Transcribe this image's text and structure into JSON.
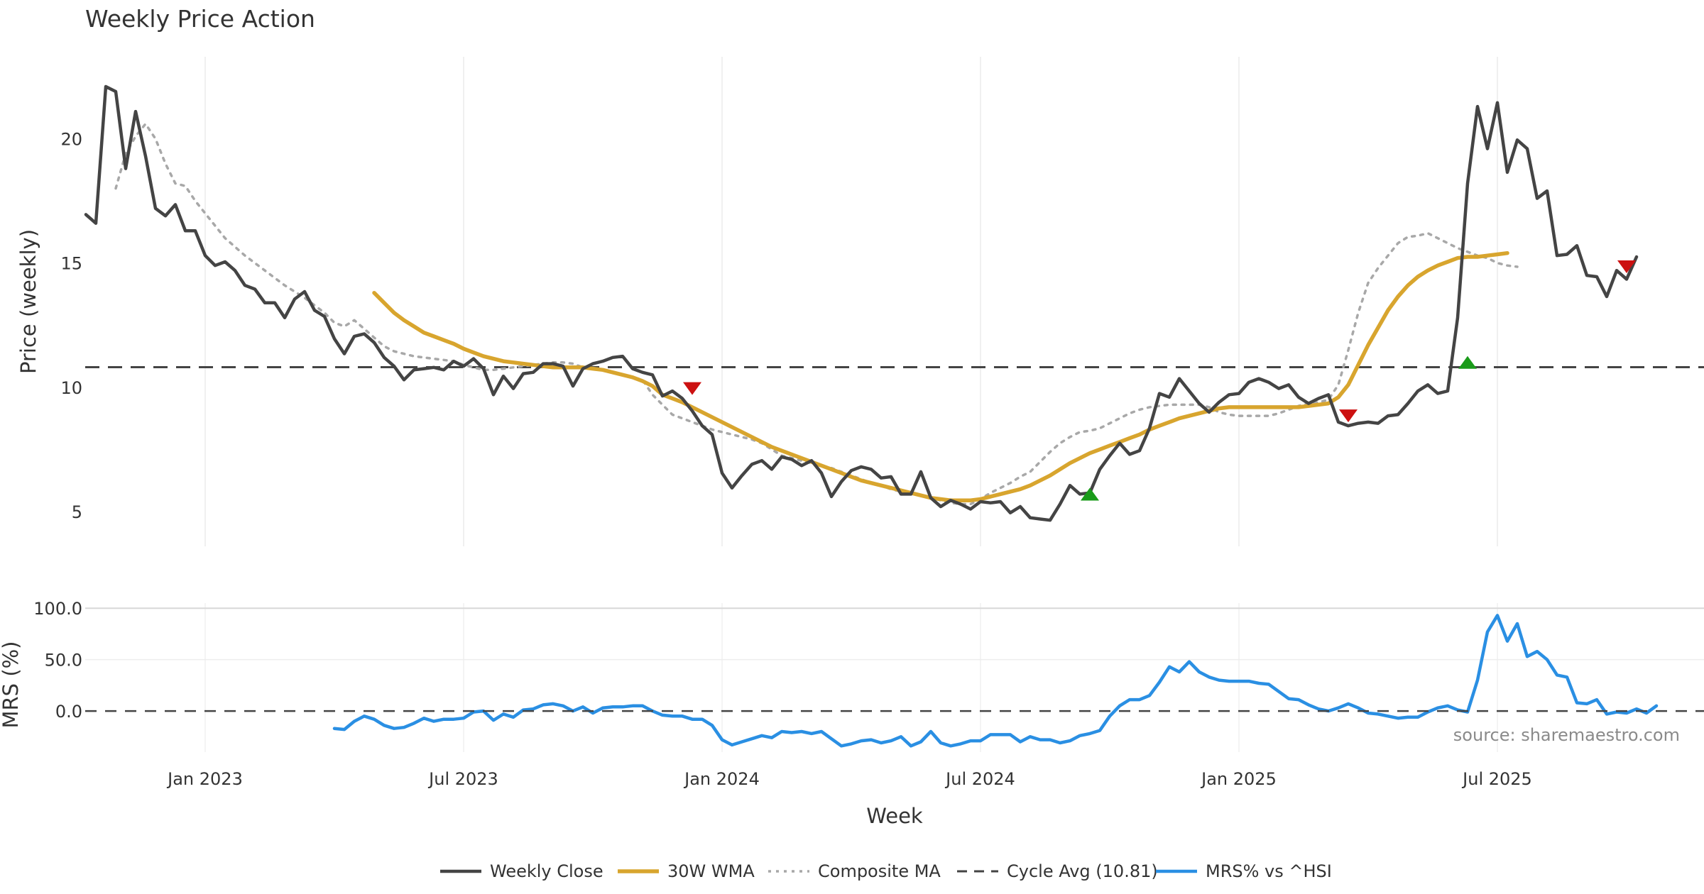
{
  "chart_data": [
    {
      "type": "line",
      "title": "Weekly Price Action",
      "xlabel": "Week",
      "ylabel": "Price (weekly)",
      "ylim": [
        3.6,
        23.3
      ],
      "yticks": [
        5,
        10,
        15,
        20
      ],
      "xticks": [
        {
          "label": "Jan 2023",
          "week": 12
        },
        {
          "label": "Jul 2023",
          "week": 38
        },
        {
          "label": "Jan 2024",
          "week": 64
        },
        {
          "label": "Jul 2024",
          "week": 90
        },
        {
          "label": "Jan 2025",
          "week": 116
        },
        {
          "label": "Jul 2025",
          "week": 142
        }
      ],
      "series": [
        {
          "name": "Weekly Close",
          "color": "#444444",
          "start_week": 0,
          "values": [
            16.95,
            16.6,
            22.1,
            21.9,
            18.8,
            21.1,
            19.3,
            17.2,
            16.9,
            17.35,
            16.3,
            16.3,
            15.3,
            14.9,
            15.05,
            14.7,
            14.1,
            13.95,
            13.4,
            13.4,
            12.8,
            13.55,
            13.85,
            13.1,
            12.85,
            11.95,
            11.35,
            12.05,
            12.15,
            11.8,
            11.2,
            10.85,
            10.3,
            10.7,
            10.75,
            10.8,
            10.7,
            11.05,
            10.85,
            11.15,
            10.75,
            9.7,
            10.45,
            9.95,
            10.55,
            10.6,
            10.95,
            10.95,
            10.85,
            10.05,
            10.75,
            10.95,
            11.05,
            11.2,
            11.25,
            10.75,
            10.6,
            10.5,
            9.65,
            9.85,
            9.55,
            9.05,
            8.45,
            8.1,
            6.55,
            5.95,
            6.45,
            6.9,
            7.05,
            6.7,
            7.2,
            7.1,
            6.85,
            7.05,
            6.55,
            5.6,
            6.2,
            6.65,
            6.8,
            6.7,
            6.35,
            6.4,
            5.7,
            5.7,
            6.6,
            5.55,
            5.2,
            5.45,
            5.3,
            5.1,
            5.4,
            5.35,
            5.4,
            4.95,
            5.2,
            4.75,
            4.7,
            4.65,
            5.3,
            6.05,
            5.7,
            5.75,
            6.7,
            7.25,
            7.75,
            7.3,
            7.45,
            8.35,
            9.75,
            9.6,
            10.35,
            9.85,
            9.35,
            9.0,
            9.4,
            9.7,
            9.75,
            10.2,
            10.35,
            10.2,
            9.95,
            10.1,
            9.6,
            9.35,
            9.55,
            9.7,
            8.6,
            8.45,
            8.55,
            8.6,
            8.55,
            8.85,
            8.9,
            9.35,
            9.85,
            10.1,
            9.75,
            9.85,
            12.8,
            18.2,
            21.3,
            19.6,
            21.45,
            18.65,
            19.95,
            19.6,
            17.6,
            17.9,
            15.3,
            15.35,
            15.7,
            14.5,
            14.45,
            13.65,
            14.7,
            14.35,
            15.25
          ]
        },
        {
          "name": "30W WMA",
          "color": "#d8a52e",
          "start_week": 29,
          "values": [
            13.8,
            13.4,
            13.0,
            12.7,
            12.45,
            12.2,
            12.05,
            11.9,
            11.75,
            11.55,
            11.4,
            11.25,
            11.15,
            11.05,
            11.0,
            10.95,
            10.9,
            10.85,
            10.8,
            10.8,
            10.8,
            10.8,
            10.75,
            10.7,
            10.6,
            10.5,
            10.4,
            10.25,
            10.05,
            9.7,
            9.55,
            9.4,
            9.2,
            9.0,
            8.8,
            8.6,
            8.4,
            8.2,
            8.0,
            7.8,
            7.6,
            7.45,
            7.3,
            7.15,
            7.0,
            6.85,
            6.7,
            6.55,
            6.4,
            6.25,
            6.15,
            6.05,
            5.95,
            5.85,
            5.75,
            5.65,
            5.55,
            5.5,
            5.45,
            5.45,
            5.45,
            5.5,
            5.6,
            5.7,
            5.8,
            5.9,
            6.05,
            6.25,
            6.45,
            6.7,
            6.95,
            7.15,
            7.35,
            7.5,
            7.65,
            7.8,
            7.95,
            8.1,
            8.3,
            8.45,
            8.6,
            8.75,
            8.85,
            8.95,
            9.05,
            9.15,
            9.2,
            9.2,
            9.2,
            9.2,
            9.2,
            9.2,
            9.2,
            9.2,
            9.25,
            9.3,
            9.35,
            9.6,
            10.1,
            10.9,
            11.7,
            12.4,
            13.1,
            13.65,
            14.1,
            14.45,
            14.7,
            14.9,
            15.05,
            15.2,
            15.25,
            15.25,
            15.3,
            15.35,
            15.4
          ]
        },
        {
          "name": "Composite MA",
          "color": "#a8a8a8",
          "start_week": 3,
          "values": [
            18.0,
            19.4,
            20.1,
            20.6,
            20.0,
            19.0,
            18.2,
            18.1,
            17.5,
            17.0,
            16.5,
            16.0,
            15.65,
            15.3,
            15.0,
            14.7,
            14.4,
            14.1,
            13.85,
            13.6,
            13.3,
            13.0,
            12.6,
            12.45,
            12.7,
            12.35,
            12.0,
            11.65,
            11.45,
            11.35,
            11.25,
            11.2,
            11.15,
            11.1,
            11.05,
            10.9,
            10.8,
            10.7,
            10.7,
            10.75,
            10.8,
            10.85,
            10.9,
            10.95,
            11.0,
            11.0,
            10.95,
            10.8,
            10.75,
            10.7,
            10.6,
            10.5,
            10.4,
            10.3,
            9.7,
            9.3,
            8.9,
            8.75,
            8.6,
            8.45,
            8.3,
            8.2,
            8.1,
            8.0,
            7.9,
            7.75,
            7.5,
            7.25,
            7.15,
            7.05,
            6.95,
            6.85,
            6.75,
            6.6,
            6.45,
            6.3,
            6.15,
            6.05,
            5.9,
            5.8,
            5.75,
            5.65,
            5.55,
            5.45,
            5.35,
            5.3,
            5.3,
            5.5,
            5.75,
            5.95,
            6.15,
            6.4,
            6.6,
            7.0,
            7.4,
            7.75,
            8.0,
            8.2,
            8.25,
            8.35,
            8.55,
            8.75,
            8.95,
            9.1,
            9.2,
            9.25,
            9.3,
            9.3,
            9.3,
            9.3,
            9.2,
            9.0,
            8.9,
            8.85,
            8.85,
            8.85,
            8.85,
            8.95,
            9.1,
            9.25,
            9.35,
            9.4,
            9.5,
            10.1,
            11.5,
            13.0,
            14.2,
            14.8,
            15.3,
            15.8,
            16.05,
            16.1,
            16.2,
            16.0,
            15.8,
            15.6,
            15.45,
            15.3,
            15.2,
            15.0,
            14.9,
            14.85
          ]
        },
        {
          "name": "Cycle Avg (10.81)",
          "color": "#444444",
          "constant": 10.81
        }
      ],
      "markers": [
        {
          "type": "sell",
          "week": 61,
          "value": 9.95,
          "color": "#cc1111"
        },
        {
          "type": "buy",
          "week": 101,
          "value": 5.7,
          "color": "#1a9b1a"
        },
        {
          "type": "sell",
          "week": 127,
          "value": 8.85,
          "color": "#cc1111"
        },
        {
          "type": "buy",
          "week": 139,
          "value": 11.0,
          "color": "#1a9b1a"
        },
        {
          "type": "sell",
          "week": 155,
          "value": 14.85,
          "color": "#cc1111"
        }
      ]
    },
    {
      "type": "line",
      "xlabel": "Week",
      "ylabel": "MRS (%)",
      "ylim": [
        -40,
        105
      ],
      "yticks": [
        {
          "value": 100,
          "label": "100.0"
        },
        {
          "value": 50,
          "label": "50.0"
        },
        {
          "value": 0,
          "label": "0.0"
        }
      ],
      "series": [
        {
          "name": "MRS% vs ^HSI",
          "color": "#2a8fe3",
          "start_week": 25,
          "values": [
            -17,
            -18,
            -10,
            -5,
            -8,
            -14,
            -17,
            -16,
            -12,
            -7,
            -10,
            -8,
            -8,
            -7,
            -1,
            0,
            -9,
            -3,
            -6,
            1,
            2,
            6,
            7,
            5,
            0,
            4,
            -2,
            3,
            4,
            4,
            5,
            5,
            0,
            -4,
            -5,
            -5,
            -8,
            -8,
            -14,
            -28,
            -33,
            -30,
            -27,
            -24,
            -26,
            -20,
            -21,
            -20,
            -22,
            -20,
            -27,
            -34,
            -32,
            -29,
            -28,
            -31,
            -29,
            -25,
            -34,
            -30,
            -20,
            -31,
            -34,
            -32,
            -29,
            -29,
            -23,
            -23,
            -23,
            -30,
            -25,
            -28,
            -28,
            -31,
            -29,
            -24,
            -22,
            -19,
            -5,
            5,
            11,
            11,
            15,
            28,
            43,
            38,
            48,
            38,
            33,
            30,
            29,
            29,
            29,
            27,
            26,
            19,
            12,
            11,
            6,
            2,
            0,
            3,
            7,
            3,
            -2,
            -3,
            -5,
            -7,
            -6,
            -6,
            -1,
            3,
            5,
            1,
            -1,
            30,
            77,
            93,
            68,
            85,
            53,
            58,
            50,
            35,
            33,
            8,
            7,
            11,
            -3,
            -1,
            -2,
            2,
            -2,
            5
          ]
        },
        {
          "name": "zero",
          "color": "#444444",
          "constant": 0
        }
      ]
    }
  ],
  "legend": [
    {
      "name": "Weekly Close",
      "color": "#444444",
      "style": "solid"
    },
    {
      "name": "30W WMA",
      "color": "#d8a52e",
      "style": "solid"
    },
    {
      "name": "Composite MA",
      "color": "#a8a8a8",
      "style": "dotted"
    },
    {
      "name": "Cycle Avg (10.81)",
      "color": "#444444",
      "style": "dashed"
    },
    {
      "name": "MRS% vs ^HSI",
      "color": "#2a8fe3",
      "style": "solid"
    }
  ],
  "source_text": "source: sharemaestro.com"
}
